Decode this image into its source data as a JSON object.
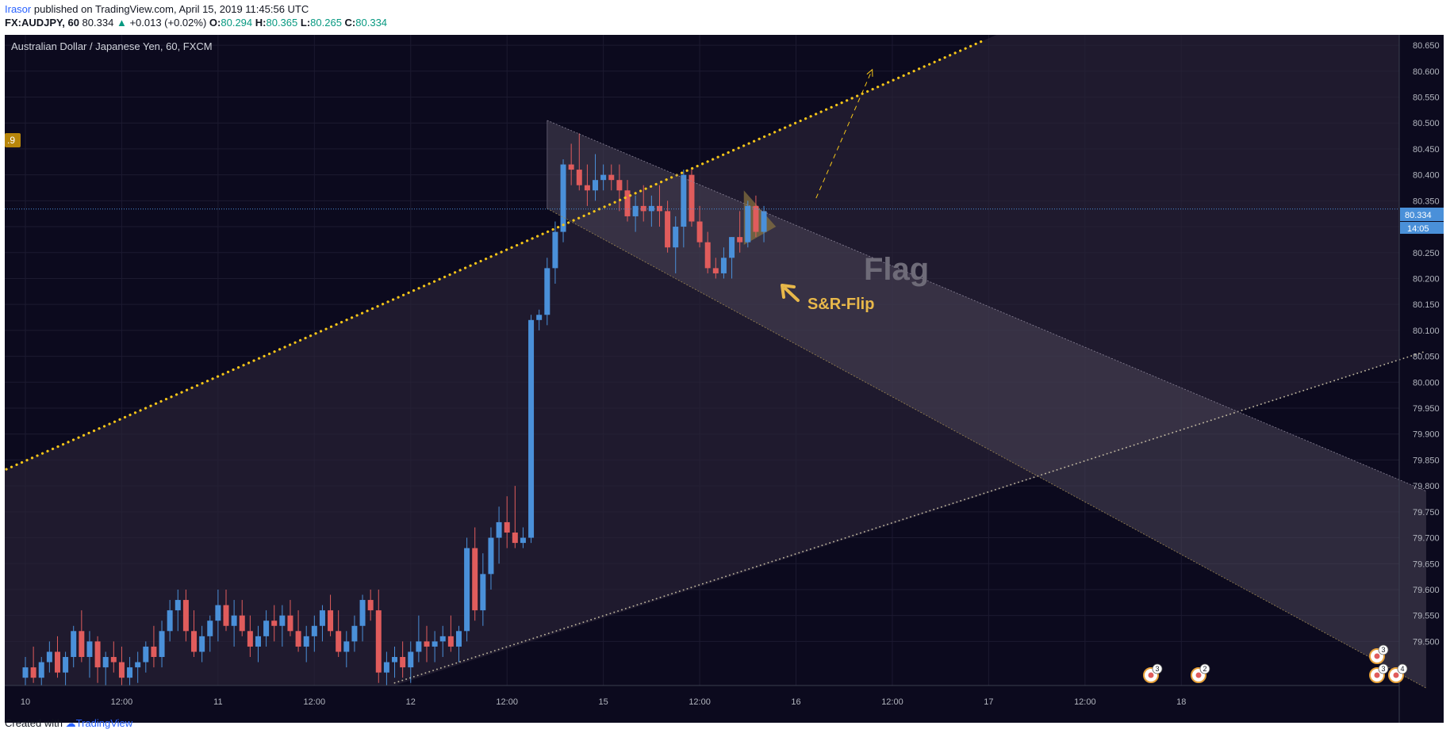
{
  "header": {
    "author": "Irasor",
    "published": "published on TradingView.com, April 15, 2019 11:45:56 UTC",
    "symbol": "FX:AUDJPY, 60",
    "last": "80.334",
    "change": "+0.013 (+0.02%)",
    "open_label": "O:",
    "open": "80.294",
    "high_label": "H:",
    "high": "80.365",
    "low_label": "L:",
    "low": "80.265",
    "close_label": "C:",
    "close": "80.334"
  },
  "chart": {
    "legend": "Australian Dollar / Japanese Yen, 60, FXCM",
    "left_badge": ".9",
    "price_label": "80.334",
    "countdown": "14:05",
    "annotation_flag": "Flag",
    "annotation_flip": "S&R-Flip",
    "event_counts": [
      "3",
      "2",
      "3",
      "3",
      "4"
    ]
  },
  "footer": {
    "created": "Created with",
    "brand": "TradingView"
  },
  "colors": {
    "background": "#0c0a1e",
    "bull": "#4a90d9",
    "bear": "#e05c5c",
    "trendline": "#f5c518",
    "annotation": "#e8b84a",
    "flag_text": "#6e6b78"
  },
  "chart_data": {
    "type": "candlestick",
    "title": "Australian Dollar / Japanese Yen, 60, FXCM",
    "ylim": [
      79.415,
      80.67
    ],
    "y_ticks": [
      80.65,
      80.6,
      80.55,
      80.5,
      80.45,
      80.4,
      80.35,
      80.3,
      80.25,
      80.2,
      80.15,
      80.1,
      80.05,
      80.0,
      79.95,
      79.9,
      79.85,
      79.8,
      79.75,
      79.7,
      79.65,
      79.6,
      79.55,
      79.5
    ],
    "y_tick_labels": [
      "80.650",
      "80.600",
      "80.550",
      "80.500",
      "80.450",
      "80.400",
      "80.350",
      "80.300",
      "80.250",
      "80.200",
      "80.150",
      "80.100",
      "80.050",
      "80.000",
      "79.950",
      "79.900",
      "79.850",
      "79.800",
      "79.750",
      "79.700",
      "79.650",
      "79.600",
      "79.550",
      "79.500"
    ],
    "x_ticks": [
      {
        "label": "10",
        "i": 0
      },
      {
        "label": "12:00",
        "i": 12
      },
      {
        "label": "11",
        "i": 24
      },
      {
        "label": "12:00",
        "i": 36
      },
      {
        "label": "12",
        "i": 48
      },
      {
        "label": "12:00",
        "i": 60
      },
      {
        "label": "15",
        "i": 72
      },
      {
        "label": "12:00",
        "i": 84
      },
      {
        "label": "16",
        "i": 96
      },
      {
        "label": "12:00",
        "i": 108
      },
      {
        "label": "17",
        "i": 120
      },
      {
        "label": "12:00",
        "i": 132
      },
      {
        "label": "18",
        "i": 144
      }
    ],
    "candles": [
      [
        79.43,
        79.47,
        79.4,
        79.45
      ],
      [
        79.45,
        79.49,
        79.42,
        79.43
      ],
      [
        79.43,
        79.47,
        79.4,
        79.46
      ],
      [
        79.46,
        79.5,
        79.44,
        79.48
      ],
      [
        79.48,
        79.51,
        79.43,
        79.44
      ],
      [
        79.44,
        79.48,
        79.41,
        79.47
      ],
      [
        79.47,
        79.53,
        79.45,
        79.52
      ],
      [
        79.52,
        79.56,
        79.46,
        79.47
      ],
      [
        79.47,
        79.52,
        79.43,
        79.5
      ],
      [
        79.5,
        79.51,
        79.42,
        79.45
      ],
      [
        79.45,
        79.48,
        79.41,
        79.47
      ],
      [
        79.47,
        79.5,
        79.44,
        79.46
      ],
      [
        79.46,
        79.49,
        79.41,
        79.43
      ],
      [
        79.43,
        79.47,
        79.4,
        79.45
      ],
      [
        79.45,
        79.48,
        79.42,
        79.46
      ],
      [
        79.46,
        79.5,
        79.44,
        79.49
      ],
      [
        79.49,
        79.53,
        79.45,
        79.47
      ],
      [
        79.47,
        79.54,
        79.45,
        79.52
      ],
      [
        79.52,
        79.58,
        79.5,
        79.56
      ],
      [
        79.56,
        79.6,
        79.52,
        79.58
      ],
      [
        79.58,
        79.6,
        79.5,
        79.52
      ],
      [
        79.52,
        79.56,
        79.47,
        79.48
      ],
      [
        79.48,
        79.53,
        79.46,
        79.51
      ],
      [
        79.51,
        79.55,
        79.48,
        79.54
      ],
      [
        79.54,
        79.6,
        79.5,
        79.57
      ],
      [
        79.57,
        79.6,
        79.52,
        79.53
      ],
      [
        79.53,
        79.58,
        79.49,
        79.55
      ],
      [
        79.55,
        79.58,
        79.51,
        79.52
      ],
      [
        79.52,
        79.55,
        79.47,
        79.49
      ],
      [
        79.49,
        79.53,
        79.46,
        79.51
      ],
      [
        79.51,
        79.56,
        79.49,
        79.54
      ],
      [
        79.54,
        79.57,
        79.5,
        79.53
      ],
      [
        79.53,
        79.57,
        79.49,
        79.55
      ],
      [
        79.55,
        79.58,
        79.51,
        79.52
      ],
      [
        79.52,
        79.56,
        79.48,
        79.49
      ],
      [
        79.49,
        79.53,
        79.46,
        79.51
      ],
      [
        79.51,
        79.55,
        79.48,
        79.53
      ],
      [
        79.53,
        79.57,
        79.5,
        79.56
      ],
      [
        79.56,
        79.59,
        79.51,
        79.52
      ],
      [
        79.52,
        79.56,
        79.47,
        79.48
      ],
      [
        79.48,
        79.52,
        79.45,
        79.5
      ],
      [
        79.5,
        79.55,
        79.48,
        79.53
      ],
      [
        79.53,
        79.59,
        79.5,
        79.58
      ],
      [
        79.58,
        79.6,
        79.54,
        79.56
      ],
      [
        79.56,
        79.6,
        79.42,
        79.44
      ],
      [
        79.44,
        79.48,
        79.4,
        79.46
      ],
      [
        79.46,
        79.49,
        79.43,
        79.47
      ],
      [
        79.47,
        79.5,
        79.43,
        79.45
      ],
      [
        79.45,
        79.5,
        79.42,
        79.48
      ],
      [
        79.48,
        79.55,
        79.46,
        79.5
      ],
      [
        79.5,
        79.53,
        79.46,
        79.49
      ],
      [
        79.49,
        79.52,
        79.46,
        79.5
      ],
      [
        79.5,
        79.53,
        79.47,
        79.51
      ],
      [
        79.51,
        79.55,
        79.48,
        79.49
      ],
      [
        79.49,
        79.53,
        79.46,
        79.52
      ],
      [
        79.52,
        79.7,
        79.5,
        79.68
      ],
      [
        79.68,
        79.72,
        79.54,
        79.56
      ],
      [
        79.56,
        79.67,
        79.53,
        79.63
      ],
      [
        79.63,
        79.72,
        79.6,
        79.7
      ],
      [
        79.7,
        79.76,
        79.65,
        79.73
      ],
      [
        79.73,
        79.78,
        79.68,
        79.71
      ],
      [
        79.71,
        79.8,
        79.68,
        79.69
      ],
      [
        79.69,
        79.72,
        79.68,
        79.7
      ],
      [
        79.7,
        80.13,
        79.69,
        80.12
      ],
      [
        80.12,
        80.14,
        80.1,
        80.13
      ],
      [
        80.13,
        80.24,
        80.11,
        80.22
      ],
      [
        80.22,
        80.31,
        80.19,
        80.29
      ],
      [
        80.29,
        80.43,
        80.27,
        80.42
      ],
      [
        80.42,
        80.46,
        80.38,
        80.41
      ],
      [
        80.41,
        80.48,
        80.37,
        80.38
      ],
      [
        80.38,
        80.42,
        80.34,
        80.37
      ],
      [
        80.37,
        80.44,
        80.35,
        80.39
      ],
      [
        80.39,
        80.42,
        80.37,
        80.4
      ],
      [
        80.4,
        80.42,
        80.37,
        80.39
      ],
      [
        80.39,
        80.42,
        80.33,
        80.37
      ],
      [
        80.37,
        80.39,
        80.31,
        80.32
      ],
      [
        80.32,
        80.36,
        80.29,
        80.34
      ],
      [
        80.34,
        80.38,
        80.31,
        80.33
      ],
      [
        80.33,
        80.36,
        80.3,
        80.34
      ],
      [
        80.34,
        80.38,
        80.3,
        80.33
      ],
      [
        80.33,
        80.35,
        80.25,
        80.26
      ],
      [
        80.26,
        80.32,
        80.21,
        80.3
      ],
      [
        80.3,
        80.41,
        80.26,
        80.4
      ],
      [
        80.4,
        80.41,
        80.3,
        80.31
      ],
      [
        80.31,
        80.34,
        80.26,
        80.27
      ],
      [
        80.27,
        80.29,
        80.21,
        80.22
      ],
      [
        80.22,
        80.24,
        80.2,
        80.21
      ],
      [
        80.21,
        80.26,
        80.2,
        80.24
      ],
      [
        80.24,
        80.28,
        80.2,
        80.28
      ],
      [
        80.28,
        80.33,
        80.25,
        80.27
      ],
      [
        80.27,
        80.35,
        80.26,
        80.34
      ],
      [
        80.34,
        80.36,
        80.28,
        80.29
      ],
      [
        80.29,
        80.34,
        80.27,
        80.33
      ]
    ],
    "drawings": {
      "rising_support_line": {
        "from": {
          "i": -25.5,
          "price": 79.675
        },
        "to": {
          "i": 119.5,
          "price": 80.66
        }
      },
      "lower_channel_line": {
        "from": {
          "i": 46.0,
          "price": 79.42
        },
        "to": {
          "i": 174.5,
          "price": 80.06
        }
      },
      "flag_upper": {
        "from": {
          "i": 65.0,
          "price": 80.505
        },
        "to": {
          "i": 174.5,
          "price": 79.79
        }
      },
      "flag_lower": {
        "from": {
          "i": 65.0,
          "price": 80.335
        },
        "to": {
          "i": 174.5,
          "price": 79.41
        }
      },
      "projection_arrow": {
        "from": {
          "i": 98.5,
          "price": 80.355
        },
        "to": {
          "i": 105.5,
          "price": 80.603
        }
      }
    }
  }
}
